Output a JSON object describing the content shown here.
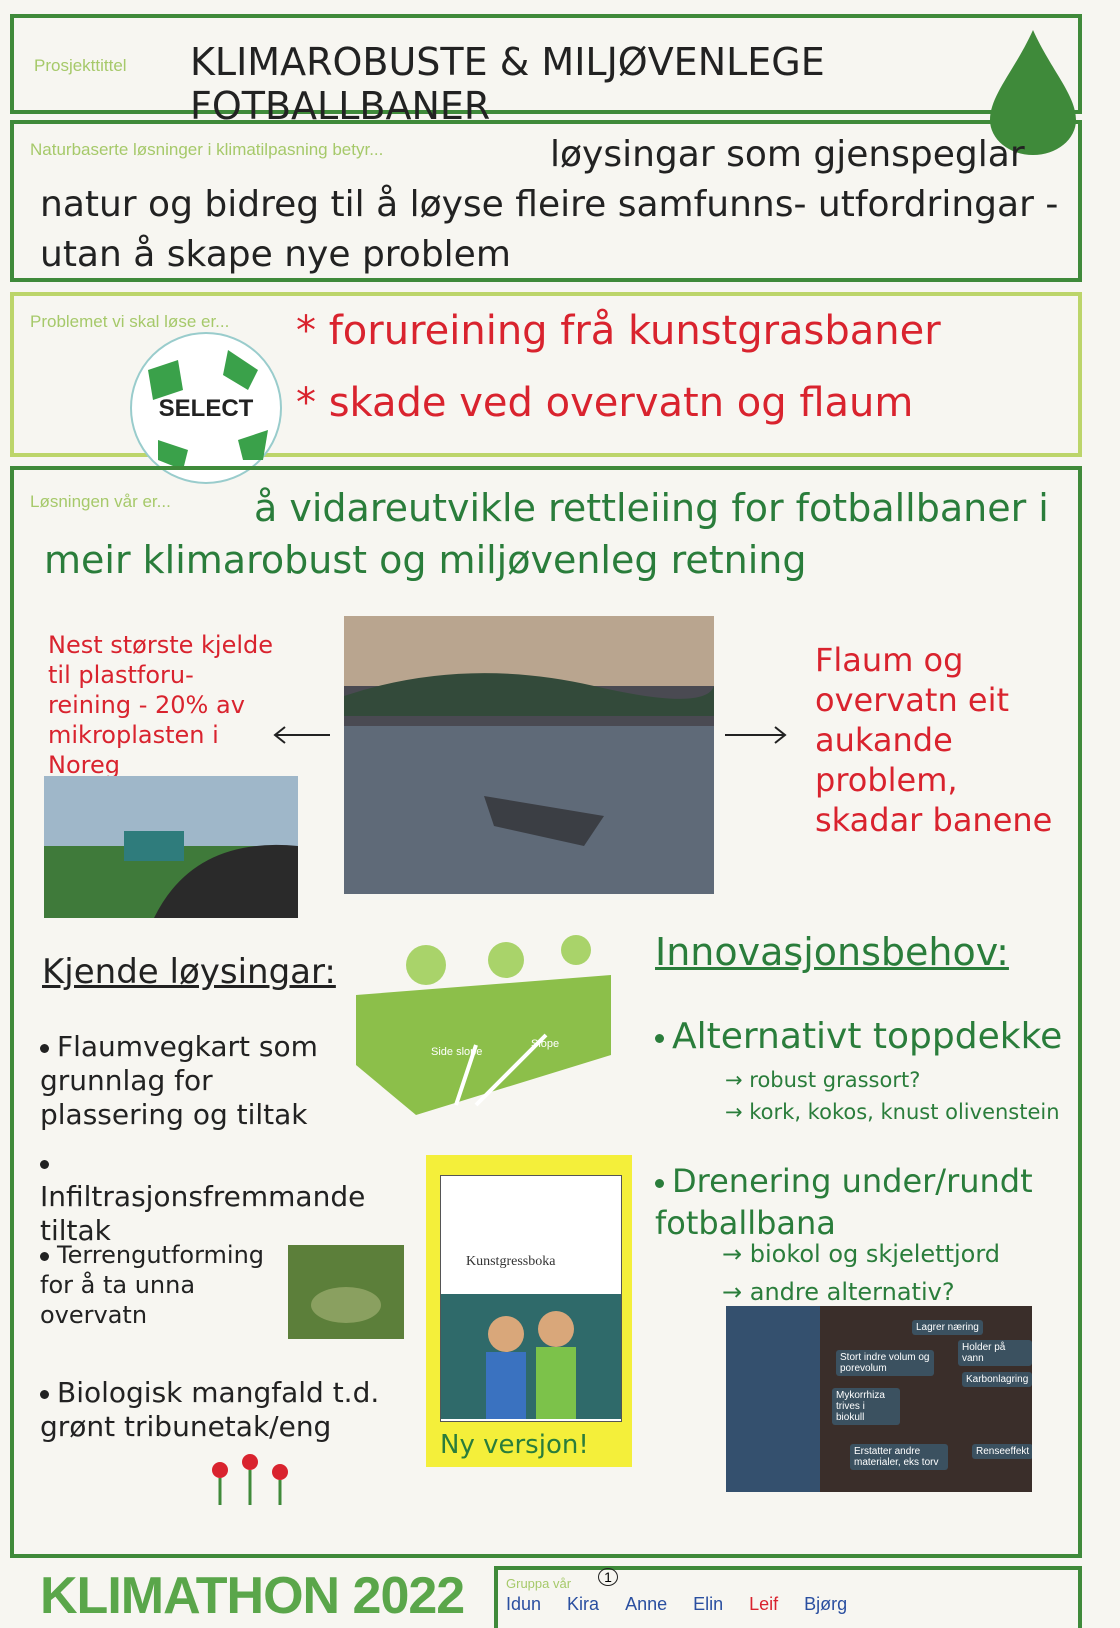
{
  "header": {
    "label": "Prosjekttittel",
    "title": "KLIMAROBUSTE & MILJØVENLEGE FOTBALLBANER"
  },
  "definition": {
    "label": "Naturbaserte løsninger i klimatilpasning betyr...",
    "text": "løysingar som gjenspeglar natur og bidreg til å løyse fleire samfunns- utfordringar - utan å skape nye problem"
  },
  "problem": {
    "label": "Problemet vi skal løse er...",
    "ball_brand": "SELECT",
    "items": [
      "* forureining frå kunstgrasbaner",
      "* skade ved overvatn og flaum"
    ]
  },
  "solution": {
    "label": "Løsningen vår er...",
    "text": "å vidareutvikle rettleiing for fotballbaner i meir klimarobust og miljøvenleg retning"
  },
  "notes": {
    "left": "Nest største kjelde til plastforu- reining - 20% av mikroplasten i Noreg",
    "right": "Flaum og overvatn eit aukande problem, skadar banene"
  },
  "known": {
    "title": "Kjende løysingar:",
    "items": [
      "Flaumvegkart som grunnlag for plassering og tiltak",
      "Infiltrasjonsfremmande tiltak",
      "Terrengutforming for å ta unna overvatn",
      "Biologisk mangfald t.d. grønt tribunetak/eng"
    ]
  },
  "slope_figure": {
    "labels": [
      "Side slope",
      "Slope"
    ]
  },
  "booklet": {
    "title": "Kunstgressboka",
    "caption": "Ny versjon!"
  },
  "innovation": {
    "title": "Innovasjonsbehov:",
    "items": [
      {
        "text": "Alternativt toppdekke",
        "sub": [
          "→ robust grassort?",
          "→ kork, kokos, knust olivenstein"
        ]
      },
      {
        "text": "Drenering under/rundt fotballbana",
        "sub": [
          "→ biokol og skjelettjord",
          "→ andre alternativ?"
        ]
      }
    ]
  },
  "biochar_figure": {
    "labels": [
      "Lagrer næring",
      "Stort indre volum og porevolum",
      "Holder på vann",
      "Karbonlagring",
      "Mykorrhiza trives i biokull",
      "Erstatter andre materialer, eks torv",
      "Renseeffekt"
    ]
  },
  "footer": {
    "brand": "KLIMATHON 2022",
    "group_label": "Gruppa vår",
    "group_number": "1",
    "members": [
      "Idun",
      "Kira",
      "Anne",
      "Elin",
      "Leif",
      "Bjørg"
    ]
  }
}
